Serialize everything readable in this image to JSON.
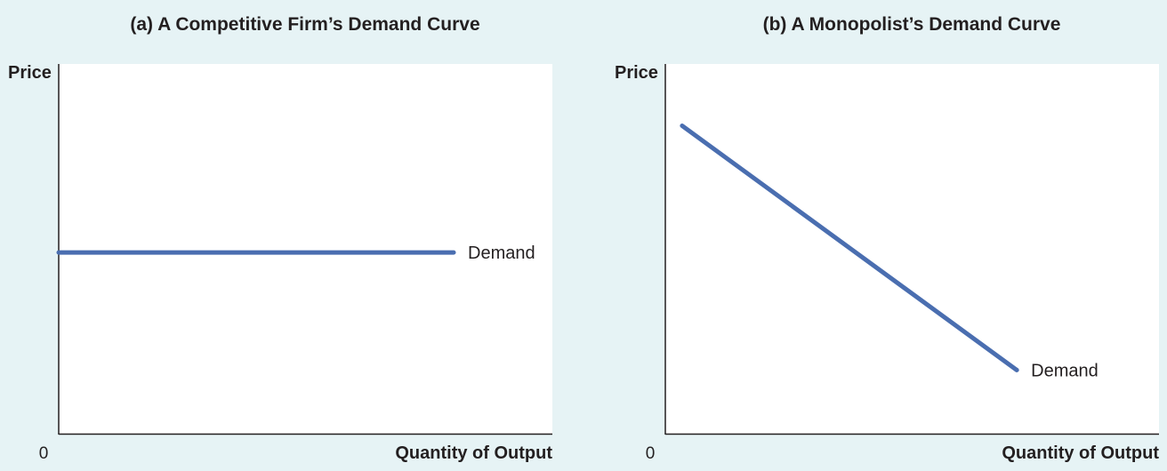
{
  "chart_data": [
    {
      "type": "line",
      "title": "(a) A Competitive Firm’s Demand Curve",
      "xlabel": "Quantity of Output",
      "ylabel": "Price",
      "origin_label": "0",
      "xlim": [
        0,
        100
      ],
      "ylim": [
        0,
        100
      ],
      "grid": false,
      "series": [
        {
          "name": "Demand",
          "color": "#4a6eb0",
          "x": [
            0,
            80
          ],
          "y": [
            49,
            49
          ]
        }
      ]
    },
    {
      "type": "line",
      "title": "(b) A Monopolist’s Demand Curve",
      "xlabel": "Quantity of Output",
      "ylabel": "Price",
      "origin_label": "0",
      "xlim": [
        0,
        100
      ],
      "ylim": [
        0,
        100
      ],
      "grid": false,
      "series": [
        {
          "name": "Demand",
          "color": "#4a6eb0",
          "x": [
            3.4,
            71.2
          ],
          "y": [
            83.3,
            17.2
          ]
        }
      ]
    }
  ],
  "colors": {
    "background": "#e6f3f5",
    "plot_background": "#ffffff",
    "axis": "#231f20",
    "demand": "#4a6eb0"
  }
}
